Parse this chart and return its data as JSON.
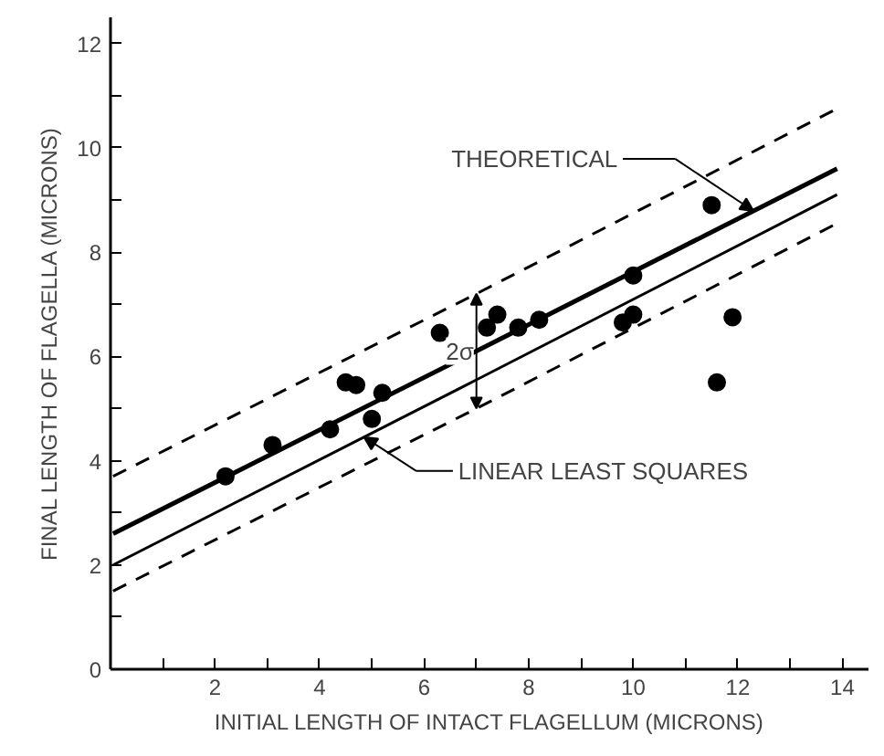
{
  "chart_data": {
    "type": "scatter",
    "xlabel": "INITIAL LENGTH OF INTACT FLAGELLUM (MICRONS)",
    "ylabel": "FINAL LENGTH OF FLAGELLA (MICRONS)",
    "xlim": [
      0,
      14.5
    ],
    "ylim": [
      0,
      12.5
    ],
    "xticks": [
      {
        "value": 1,
        "label": null
      },
      2,
      {
        "value": 3,
        "label": null
      },
      4,
      {
        "value": 5,
        "label": null
      },
      6,
      {
        "value": 7,
        "label": null
      },
      8,
      {
        "value": 9,
        "label": null
      },
      10,
      {
        "value": 11,
        "label": null
      },
      12,
      {
        "value": 13,
        "label": null
      },
      14
    ],
    "yticks": [
      0,
      {
        "value": 1,
        "label": null
      },
      2,
      {
        "value": 3,
        "label": null
      },
      4,
      {
        "value": 5,
        "label": null
      },
      6,
      {
        "value": 7,
        "label": null
      },
      8,
      {
        "value": 9,
        "label": null
      },
      10,
      {
        "value": 11,
        "label": null
      },
      12
    ],
    "grid": false,
    "x": [
      2.2,
      3.1,
      4.2,
      4.5,
      4.7,
      5.0,
      5.2,
      6.3,
      7.2,
      7.4,
      7.8,
      8.2,
      9.8,
      10.0,
      10.0,
      11.5,
      11.9,
      11.6
    ],
    "series": [
      {
        "type": "scatter",
        "marker": "circle",
        "color": "#000000",
        "values": [
          3.7,
          4.3,
          4.6,
          5.5,
          5.45,
          4.8,
          5.3,
          6.45,
          6.55,
          6.8,
          6.55,
          6.7,
          6.65,
          6.8,
          7.55,
          8.9,
          6.75,
          5.5
        ]
      },
      {
        "type": "line",
        "color": "#000000",
        "line_style": "solid",
        "x": [
          0.05,
          7,
          13.9
        ],
        "values": [
          2.6,
          6.1,
          9.6
        ]
      },
      {
        "type": "line",
        "color": "#000000",
        "line_style": "solid",
        "x": [
          0.05,
          7,
          13.9
        ],
        "values": [
          2.0,
          5.55,
          9.1
        ]
      },
      {
        "type": "line",
        "color": "#000000",
        "line_style": "dashed",
        "x": [
          0.05,
          7,
          13.9
        ],
        "values": [
          3.7,
          7.2,
          10.75
        ]
      },
      {
        "type": "line",
        "color": "#000000",
        "line_style": "dashed",
        "x": [
          0.05,
          7,
          13.9
        ],
        "values": [
          1.5,
          5.0,
          8.55
        ]
      }
    ],
    "annotations": [
      "THEORETICAL",
      "LINEAR LEAST SQUARES",
      {
        "text": "2σ",
        "x": 7.0,
        "y": 6.1
      }
    ]
  }
}
